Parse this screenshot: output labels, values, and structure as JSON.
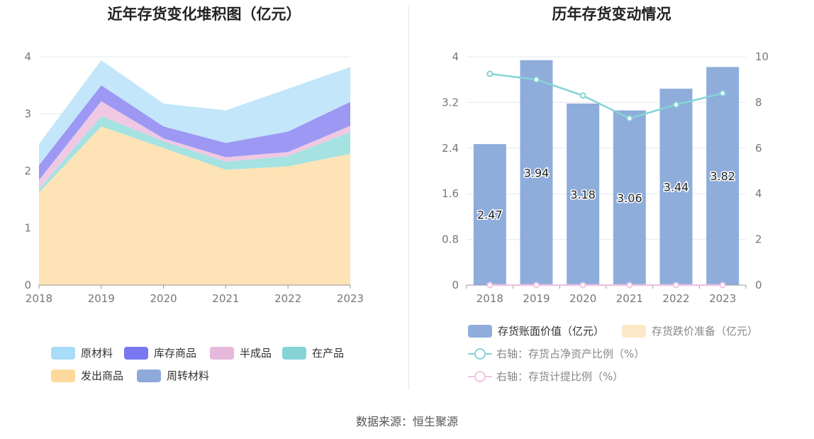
{
  "footer": "数据来源：恒生聚源",
  "chart_data": [
    {
      "type": "area",
      "title": "近年存货变化堆积图（亿元）",
      "categories": [
        "2018",
        "2019",
        "2020",
        "2021",
        "2022",
        "2023"
      ],
      "ylim": [
        0,
        4
      ],
      "yticks": [
        "0",
        "1",
        "2",
        "3",
        "4"
      ],
      "grid": true,
      "stacked": true,
      "legend_position": "bottom",
      "series": [
        {
          "name": "发出商品",
          "color": "#fde3b5",
          "values": [
            1.62,
            2.78,
            2.4,
            2.02,
            2.08,
            2.3
          ]
        },
        {
          "name": "在产品",
          "color": "#a5e2e2",
          "values": [
            0.06,
            0.18,
            0.12,
            0.14,
            0.18,
            0.38
          ]
        },
        {
          "name": "半成品",
          "color": "#efc9e3",
          "values": [
            0.16,
            0.26,
            0.05,
            0.08,
            0.07,
            0.11
          ]
        },
        {
          "name": "库存商品",
          "color": "#9d98f3",
          "values": [
            0.26,
            0.28,
            0.21,
            0.25,
            0.36,
            0.42
          ]
        },
        {
          "name": "原材料",
          "color": "#c3e6fa",
          "values": [
            0.37,
            0.44,
            0.4,
            0.57,
            0.75,
            0.61
          ]
        },
        {
          "name": "周转材料",
          "color": "#8ea9da",
          "values": [
            0.0,
            0.0,
            0.0,
            0.0,
            0.0,
            0.0
          ]
        }
      ],
      "legend": [
        {
          "name": "原材料",
          "color": "#a8dcf8"
        },
        {
          "name": "库存商品",
          "color": "#7a78f0"
        },
        {
          "name": "半成品",
          "color": "#e6b8db"
        },
        {
          "name": "在产品",
          "color": "#86d3d6"
        },
        {
          "name": "发出商品",
          "color": "#fdd99c"
        },
        {
          "name": "周转材料",
          "color": "#8ea9da"
        }
      ]
    },
    {
      "type": "bar",
      "title": "历年存货变动情况",
      "categories": [
        "2018",
        "2019",
        "2020",
        "2021",
        "2022",
        "2023"
      ],
      "ylim": [
        0,
        4
      ],
      "yticks": [
        "0",
        "0.8",
        "1.6",
        "2.4",
        "3.2",
        "4"
      ],
      "y2lim": [
        0,
        10
      ],
      "y2ticks": [
        "0",
        "2",
        "4",
        "6",
        "8",
        "10"
      ],
      "grid": true,
      "legend_position": "bottom",
      "series": [
        {
          "name": "存货账面价值（亿元）",
          "type": "bar",
          "axis": "left",
          "color": "#8eaddb",
          "values": [
            2.47,
            3.94,
            3.18,
            3.06,
            3.44,
            3.82
          ],
          "labels": [
            "2.47",
            "3.94",
            "3.18",
            "3.06",
            "3.44",
            "3.82"
          ]
        },
        {
          "name": "存货跌价准备（亿元）",
          "type": "bar",
          "axis": "left",
          "color": "#fde8c8",
          "values": [
            0,
            0,
            0,
            0,
            0,
            0
          ]
        },
        {
          "name": "右轴：存货占净资产比例（%）",
          "type": "line",
          "axis": "right",
          "color": "#86d3d6",
          "values": [
            9.25,
            9.0,
            8.3,
            7.3,
            7.9,
            8.4
          ]
        },
        {
          "name": "右轴：存货计提比例（%）",
          "type": "line",
          "axis": "right",
          "color": "#f0c4e4",
          "values": [
            0,
            0,
            0,
            0,
            0,
            0
          ]
        }
      ]
    }
  ]
}
